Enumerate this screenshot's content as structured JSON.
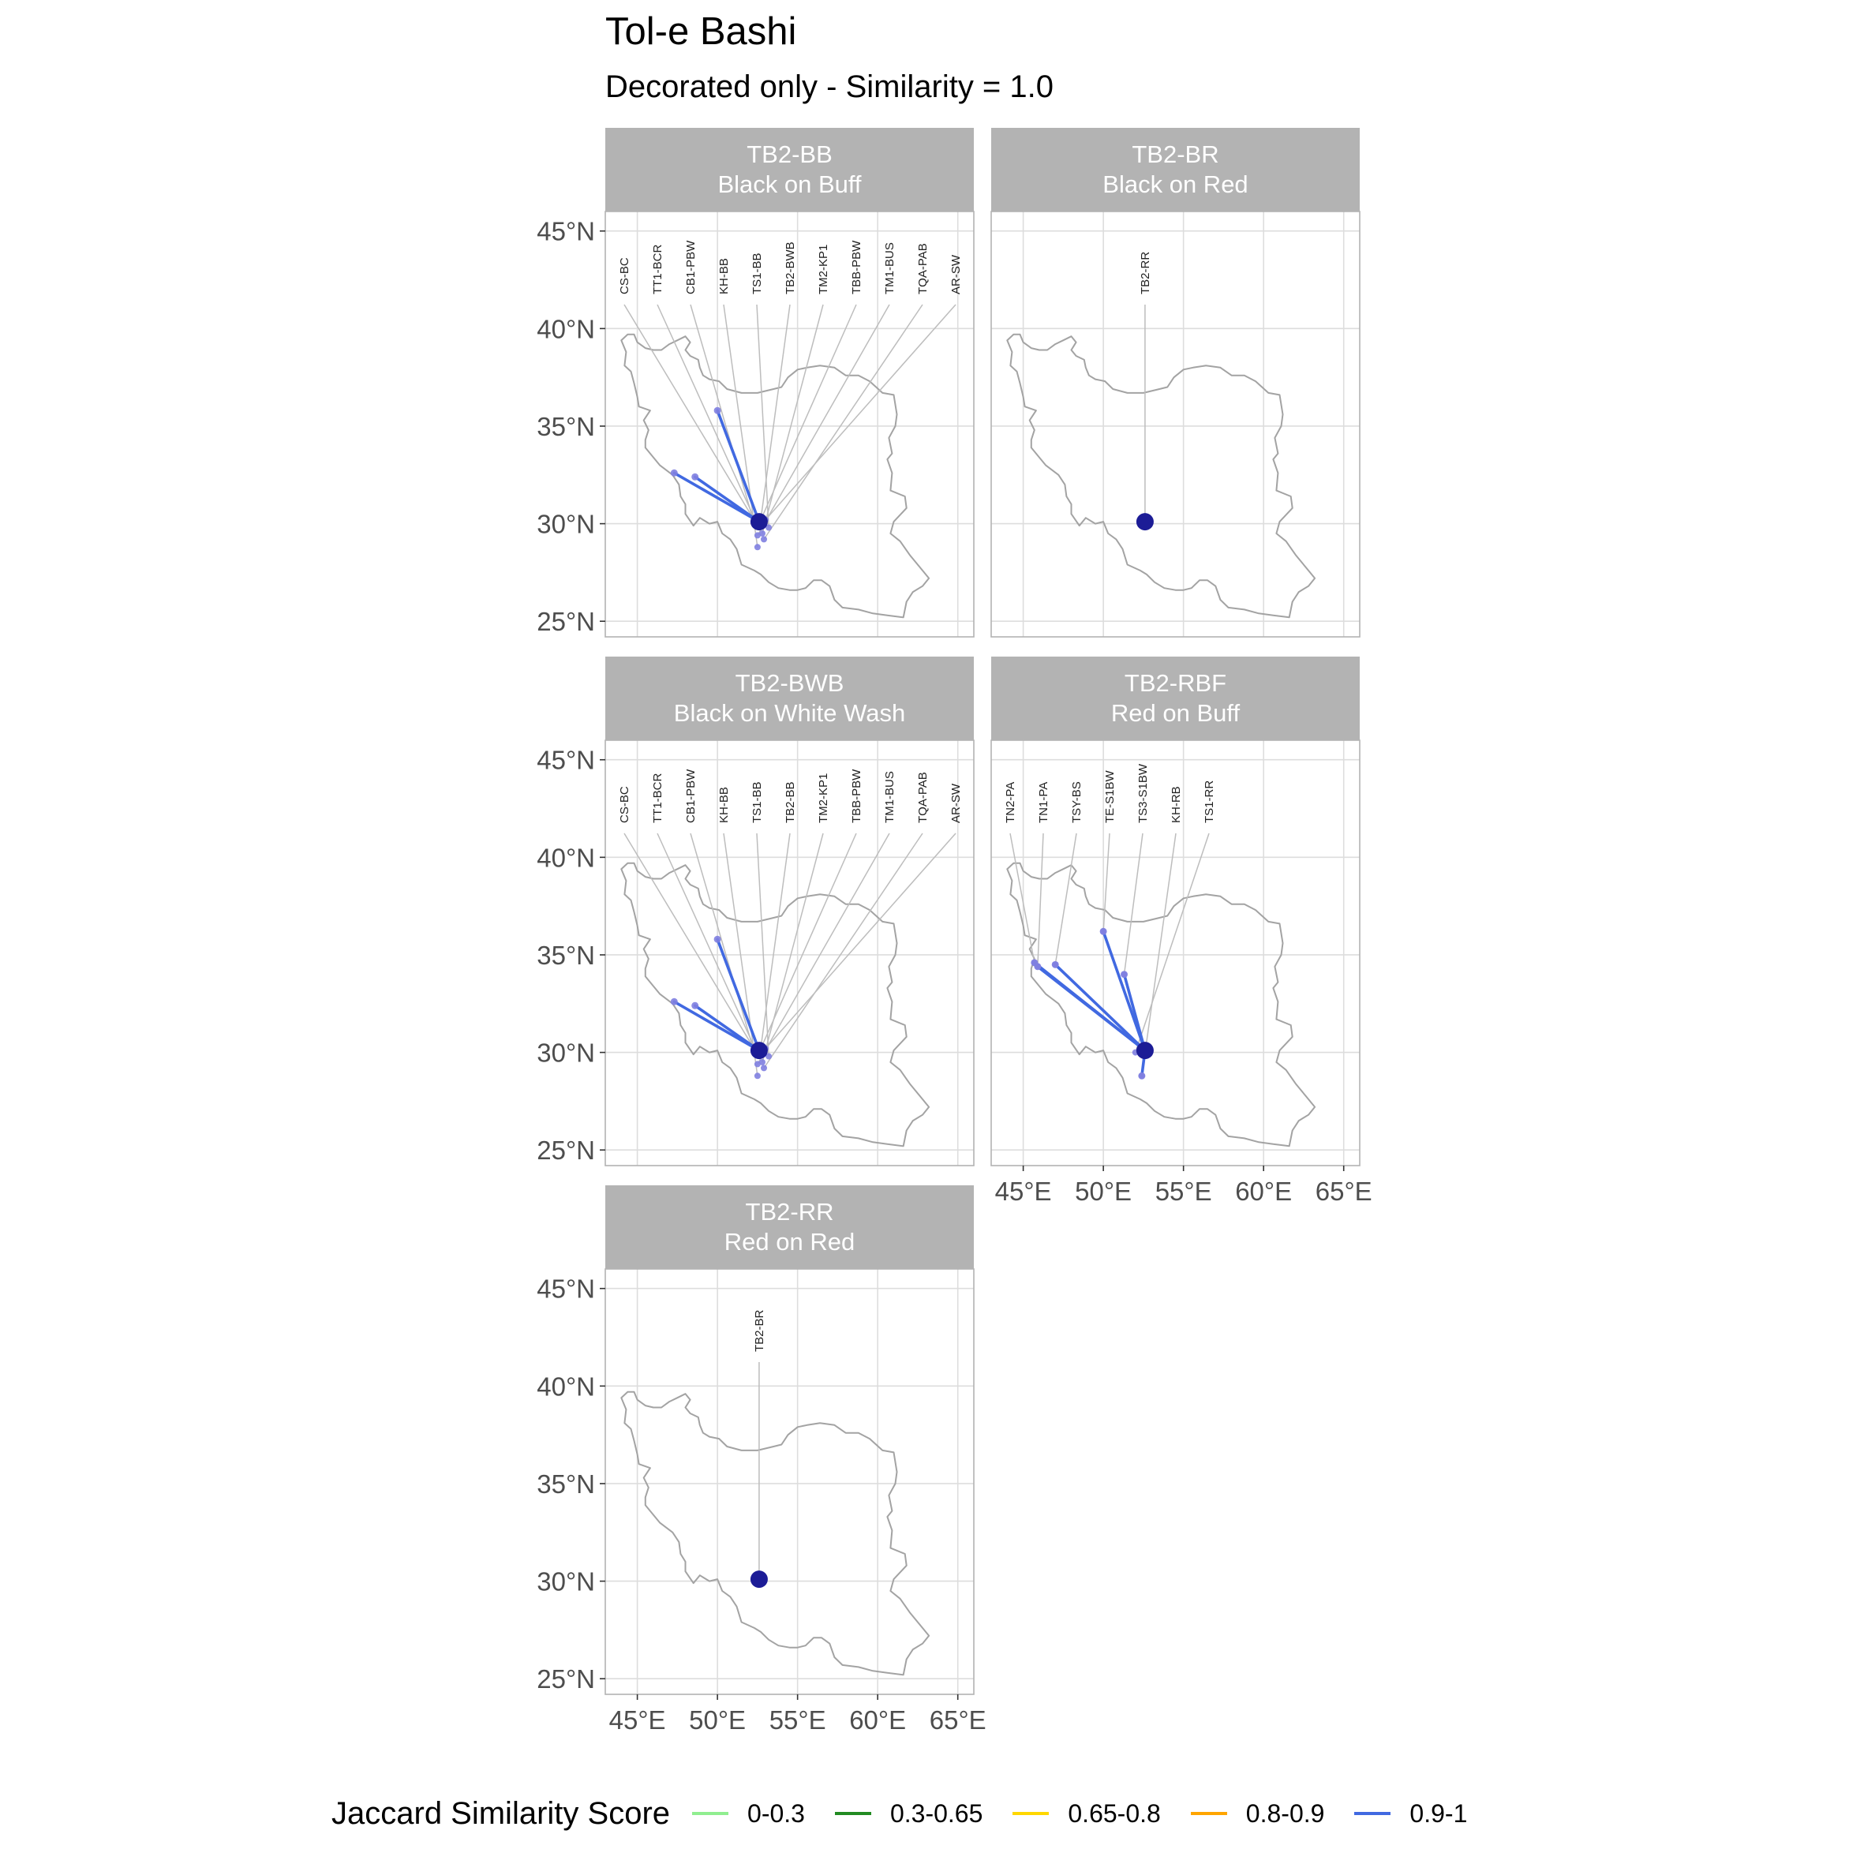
{
  "title": "Tol-e Bashi",
  "subtitle": "Decorated only - Similarity = 1.0",
  "axes": {
    "lon_ticks": [
      45,
      50,
      55,
      60,
      65
    ],
    "lon_tick_labels": [
      "45°E",
      "50°E",
      "55°E",
      "60°E",
      "65°E"
    ],
    "lat_ticks": [
      25,
      30,
      35,
      40,
      45
    ],
    "lat_tick_labels": [
      "25°N",
      "30°N",
      "35°N",
      "40°N",
      "45°N"
    ],
    "lon_range": [
      43,
      66
    ],
    "lat_range": [
      24.2,
      46
    ],
    "grid": true
  },
  "focal_site": {
    "lon": 52.6,
    "lat": 30.1
  },
  "colors": {
    "link": "#4169e1",
    "focal_point": "#1c1c96",
    "site_point": "#8080e0",
    "outline": "#a3a3a3",
    "strip": "#b3b3b3"
  },
  "panels": [
    {
      "id": "TB2-BB",
      "name": "Black on Buff",
      "sites": [
        {
          "label": "CS-BC",
          "lon": 52.5,
          "lat": 29.9
        },
        {
          "label": "TT1-BCR",
          "lon": 52.4,
          "lat": 30.1
        },
        {
          "label": "CB1-PBW",
          "lon": 52.3,
          "lat": 30.0
        },
        {
          "label": "KH-BB",
          "lon": 52.5,
          "lat": 28.8
        },
        {
          "label": "TS1-BB",
          "lon": 53.2,
          "lat": 29.8
        },
        {
          "label": "TB2-BWB",
          "lon": 52.7,
          "lat": 30.2
        },
        {
          "label": "TM2-KP1",
          "lon": 52.8,
          "lat": 29.5
        },
        {
          "label": "TBB-PBW",
          "lon": 52.6,
          "lat": 30.0
        },
        {
          "label": "TM1-BUS",
          "lon": 52.5,
          "lat": 29.4
        },
        {
          "label": "TQA-PAB",
          "lon": 52.9,
          "lat": 29.2
        },
        {
          "label": "AR-SW",
          "lon": 53.0,
          "lat": 30.2
        }
      ],
      "links": [
        {
          "lon": 50.0,
          "lat": 35.8
        },
        {
          "lon": 47.3,
          "lat": 32.6
        },
        {
          "lon": 48.6,
          "lat": 32.4
        }
      ]
    },
    {
      "id": "TB2-BR",
      "name": "Black on Red",
      "sites": [
        {
          "label": "TB2-RR",
          "lon": 52.6,
          "lat": 30.1
        }
      ],
      "links": []
    },
    {
      "id": "TB2-BWB",
      "name": "Black on White Wash",
      "sites": [
        {
          "label": "CS-BC",
          "lon": 52.5,
          "lat": 29.9
        },
        {
          "label": "TT1-BCR",
          "lon": 52.4,
          "lat": 30.1
        },
        {
          "label": "CB1-PBW",
          "lon": 52.3,
          "lat": 30.0
        },
        {
          "label": "KH-BB",
          "lon": 52.5,
          "lat": 28.8
        },
        {
          "label": "TS1-BB",
          "lon": 53.2,
          "lat": 29.8
        },
        {
          "label": "TB2-BB",
          "lon": 52.7,
          "lat": 30.2
        },
        {
          "label": "TM2-KP1",
          "lon": 52.8,
          "lat": 29.5
        },
        {
          "label": "TBB-PBW",
          "lon": 52.6,
          "lat": 30.0
        },
        {
          "label": "TM1-BUS",
          "lon": 52.5,
          "lat": 29.4
        },
        {
          "label": "TQA-PAB",
          "lon": 52.9,
          "lat": 29.2
        },
        {
          "label": "AR-SW",
          "lon": 53.0,
          "lat": 30.2
        }
      ],
      "links": [
        {
          "lon": 50.0,
          "lat": 35.8
        },
        {
          "lon": 47.3,
          "lat": 32.6
        },
        {
          "lon": 48.6,
          "lat": 32.4
        }
      ]
    },
    {
      "id": "TB2-RBF",
      "name": "Red on Buff",
      "sites": [
        {
          "label": "TN2-PA",
          "lon": 45.7,
          "lat": 34.6
        },
        {
          "label": "TN1-PA",
          "lon": 45.9,
          "lat": 34.4
        },
        {
          "label": "TSY-BS",
          "lon": 47.0,
          "lat": 34.5
        },
        {
          "label": "TE-S1BW",
          "lon": 50.0,
          "lat": 36.2
        },
        {
          "label": "TS3-S1BW",
          "lon": 51.3,
          "lat": 34.0
        },
        {
          "label": "KH-RB",
          "lon": 52.4,
          "lat": 28.8
        },
        {
          "label": "TS1-RR",
          "lon": 52.0,
          "lat": 30.0
        }
      ],
      "links": [
        {
          "lon": 45.7,
          "lat": 34.6
        },
        {
          "lon": 45.9,
          "lat": 34.4
        },
        {
          "lon": 47.0,
          "lat": 34.5
        },
        {
          "lon": 50.0,
          "lat": 36.2
        },
        {
          "lon": 51.3,
          "lat": 34.0
        },
        {
          "lon": 52.4,
          "lat": 28.8
        }
      ]
    },
    {
      "id": "TB2-RR",
      "name": "Red on Red",
      "sites": [
        {
          "label": "TB2-BR",
          "lon": 52.6,
          "lat": 30.1
        }
      ],
      "links": []
    }
  ],
  "legend": {
    "title": "Jaccard Similarity Score",
    "items": [
      {
        "label": "0-0.3",
        "color": "#90ee90"
      },
      {
        "label": "0.3-0.65",
        "color": "#228b22"
      },
      {
        "label": "0.65-0.8",
        "color": "#ffd700"
      },
      {
        "label": "0.8-0.9",
        "color": "#ffa500"
      },
      {
        "label": "0.9-1",
        "color": "#4169e1"
      }
    ]
  },
  "iran_outline": [
    [
      44.0,
      39.4
    ],
    [
      44.4,
      39.7
    ],
    [
      44.8,
      39.7
    ],
    [
      45.0,
      39.3
    ],
    [
      45.5,
      39.0
    ],
    [
      46.0,
      38.9
    ],
    [
      46.5,
      38.9
    ],
    [
      47.0,
      39.2
    ],
    [
      47.5,
      39.4
    ],
    [
      48.0,
      39.6
    ],
    [
      48.3,
      39.3
    ],
    [
      48.0,
      38.9
    ],
    [
      48.3,
      38.6
    ],
    [
      48.8,
      38.4
    ],
    [
      48.9,
      38.0
    ],
    [
      49.1,
      37.6
    ],
    [
      49.5,
      37.4
    ],
    [
      50.1,
      37.3
    ],
    [
      50.6,
      36.9
    ],
    [
      51.5,
      36.7
    ],
    [
      52.5,
      36.7
    ],
    [
      53.5,
      36.9
    ],
    [
      54.0,
      37.0
    ],
    [
      54.4,
      37.5
    ],
    [
      55.0,
      37.9
    ],
    [
      55.6,
      38.0
    ],
    [
      56.4,
      38.1
    ],
    [
      57.3,
      38.0
    ],
    [
      58.0,
      37.6
    ],
    [
      58.8,
      37.6
    ],
    [
      59.5,
      37.3
    ],
    [
      60.3,
      36.7
    ],
    [
      61.0,
      36.6
    ],
    [
      61.2,
      35.6
    ],
    [
      61.1,
      35.0
    ],
    [
      60.7,
      34.4
    ],
    [
      60.9,
      33.6
    ],
    [
      60.6,
      33.3
    ],
    [
      60.9,
      32.6
    ],
    [
      60.8,
      31.7
    ],
    [
      61.7,
      31.4
    ],
    [
      61.8,
      30.8
    ],
    [
      61.0,
      30.1
    ],
    [
      60.8,
      29.5
    ],
    [
      61.4,
      29.1
    ],
    [
      62.0,
      28.4
    ],
    [
      62.8,
      27.6
    ],
    [
      63.2,
      27.2
    ],
    [
      62.8,
      26.8
    ],
    [
      62.2,
      26.5
    ],
    [
      61.8,
      26.0
    ],
    [
      61.6,
      25.2
    ],
    [
      60.6,
      25.3
    ],
    [
      59.7,
      25.4
    ],
    [
      58.8,
      25.6
    ],
    [
      57.8,
      25.7
    ],
    [
      57.3,
      26.1
    ],
    [
      57.0,
      26.8
    ],
    [
      56.5,
      27.1
    ],
    [
      56.0,
      27.1
    ],
    [
      55.5,
      26.7
    ],
    [
      55.0,
      26.6
    ],
    [
      54.5,
      26.6
    ],
    [
      53.8,
      26.7
    ],
    [
      53.2,
      27.0
    ],
    [
      52.7,
      27.4
    ],
    [
      52.3,
      27.6
    ],
    [
      51.5,
      27.9
    ],
    [
      51.2,
      28.7
    ],
    [
      50.8,
      29.2
    ],
    [
      50.3,
      29.5
    ],
    [
      50.0,
      30.1
    ],
    [
      49.5,
      30.0
    ],
    [
      48.9,
      30.3
    ],
    [
      48.5,
      29.9
    ],
    [
      48.0,
      30.5
    ],
    [
      48.0,
      31.0
    ],
    [
      47.7,
      31.4
    ],
    [
      47.6,
      32.0
    ],
    [
      47.2,
      32.5
    ],
    [
      46.4,
      33.0
    ],
    [
      45.9,
      33.5
    ],
    [
      45.5,
      33.9
    ],
    [
      45.5,
      34.3
    ],
    [
      45.7,
      34.8
    ],
    [
      45.4,
      35.3
    ],
    [
      45.8,
      35.8
    ],
    [
      45.1,
      36.0
    ],
    [
      45.0,
      36.5
    ],
    [
      44.8,
      37.2
    ],
    [
      44.6,
      37.8
    ],
    [
      44.2,
      38.1
    ],
    [
      44.3,
      38.8
    ],
    [
      44.0,
      39.4
    ]
  ]
}
